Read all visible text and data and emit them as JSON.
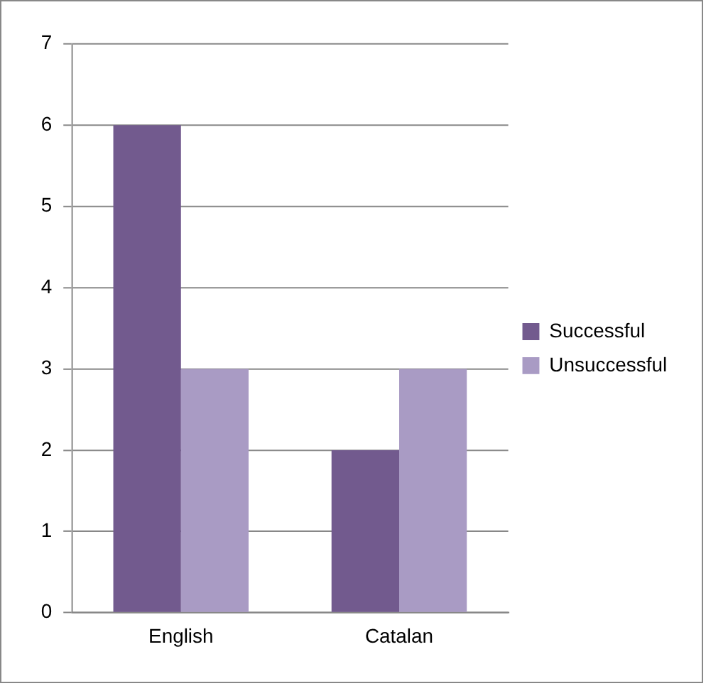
{
  "chart_data": {
    "type": "bar",
    "categories": [
      "English",
      "Catalan"
    ],
    "series": [
      {
        "name": "Successful",
        "color": "#725a8e",
        "values": [
          6,
          2
        ]
      },
      {
        "name": "Unsuccessful",
        "color": "#a99bc4",
        "values": [
          3,
          3
        ]
      }
    ],
    "ylim": [
      0,
      7
    ],
    "yticks": [
      0,
      1,
      2,
      3,
      4,
      5,
      6,
      7
    ],
    "grid": "y",
    "legend": "right"
  }
}
